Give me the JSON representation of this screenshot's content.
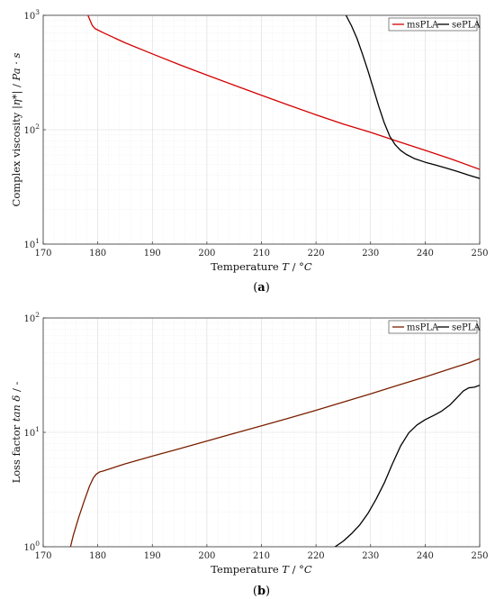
{
  "chart_data": [
    {
      "type": "line",
      "panel_label": "(a)",
      "panel_label_parts": [
        "(",
        "a",
        ")"
      ],
      "xlabel": "Temperature T / °C",
      "xlabel_parts": [
        "Temperature ",
        "T",
        " / °",
        "C"
      ],
      "ylabel": "Complex viscosity |η*| / Pa · s",
      "ylabel_parts": [
        "Complex viscosity |",
        "η*",
        "| / ",
        "Pa · s"
      ],
      "xlim": [
        170,
        250
      ],
      "ylim": [
        10,
        1000
      ],
      "yscale": "log",
      "xticks": [
        170,
        180,
        190,
        200,
        210,
        220,
        230,
        240,
        250
      ],
      "ytick_labels": [
        {
          "value": 10,
          "base": "10",
          "exp": "1"
        },
        {
          "value": 100,
          "base": "10",
          "exp": "2"
        },
        {
          "value": 1000,
          "base": "10",
          "exp": "3"
        }
      ],
      "grid": true,
      "legend_position": "top-right",
      "series": [
        {
          "name": "msPLA",
          "color": "#d40000",
          "x": [
            178.2,
            178.6,
            179.0,
            179.5,
            180.0,
            181.0,
            185,
            190,
            195,
            200,
            205,
            210,
            215,
            220,
            225,
            230,
            235,
            240,
            245,
            250
          ],
          "y": [
            1000,
            900,
            815,
            765,
            745,
            705,
            575,
            460,
            370,
            300,
            245,
            200,
            164,
            135,
            112,
            95,
            79,
            66,
            55,
            45
          ]
        },
        {
          "name": "sePLA",
          "color": "#000000",
          "x": [
            225.5,
            226.5,
            227.5,
            228.5,
            229.5,
            230.5,
            231.5,
            232.5,
            233.5,
            234.5,
            235.5,
            236.5,
            238,
            240,
            242,
            244,
            246,
            248,
            250
          ],
          "y": [
            1000,
            810,
            630,
            460,
            330,
            230,
            160,
            115,
            88,
            74,
            66,
            61,
            56,
            52,
            49,
            46,
            43,
            40,
            37.5
          ]
        }
      ]
    },
    {
      "type": "line",
      "panel_label": "(b)",
      "panel_label_parts": [
        "(",
        "b",
        ")"
      ],
      "xlabel": "Temperature T / °C",
      "xlabel_parts": [
        "Temperature ",
        "T",
        " / °",
        "C"
      ],
      "ylabel": "Loss factor tan δ / -",
      "ylabel_parts": [
        "Loss factor ",
        "tan δ",
        " / -"
      ],
      "xlim": [
        170,
        250
      ],
      "ylim": [
        1,
        100
      ],
      "yscale": "log",
      "xticks": [
        170,
        180,
        190,
        200,
        210,
        220,
        230,
        240,
        250
      ],
      "ytick_labels": [
        {
          "value": 1,
          "base": "10",
          "exp": "0"
        },
        {
          "value": 10,
          "base": "10",
          "exp": "1"
        },
        {
          "value": 100,
          "base": "10",
          "exp": "2"
        }
      ],
      "grid": true,
      "legend_position": "top-right",
      "series": [
        {
          "name": "msPLA",
          "color": "#7a1f00",
          "x": [
            175.0,
            175.5,
            176.5,
            177.5,
            178.5,
            179.2,
            179.7,
            180.3,
            181,
            185,
            190,
            195,
            200,
            205,
            210,
            215,
            220,
            225,
            230,
            235,
            240,
            245,
            248,
            250
          ],
          "y": [
            1.0,
            1.25,
            1.8,
            2.5,
            3.4,
            4.0,
            4.3,
            4.5,
            4.6,
            5.3,
            6.2,
            7.2,
            8.4,
            9.8,
            11.4,
            13.3,
            15.6,
            18.4,
            21.7,
            25.8,
            30.5,
            36.5,
            40.5,
            44
          ]
        },
        {
          "name": "sePLA",
          "color": "#000000",
          "x": [
            223.5,
            225,
            226.5,
            228,
            229.5,
            231,
            232.5,
            234,
            235.5,
            237,
            238.5,
            240,
            241.5,
            243,
            244.5,
            246,
            247,
            248,
            249,
            250
          ],
          "y": [
            1.0,
            1.12,
            1.3,
            1.55,
            1.95,
            2.6,
            3.6,
            5.3,
            7.6,
            9.9,
            11.6,
            12.9,
            14.0,
            15.3,
            17.3,
            20.5,
            23.0,
            24.5,
            24.8,
            25.8
          ]
        }
      ]
    }
  ]
}
